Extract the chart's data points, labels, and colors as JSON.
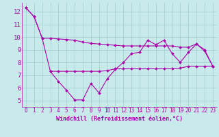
{
  "xlabel": "Windchill (Refroidissement éolien,°C)",
  "bg_color": "#c8eaea",
  "grid_color": "#a0cccc",
  "line_color": "#aa00aa",
  "xlim": [
    -0.5,
    23.5
  ],
  "ylim": [
    4.5,
    12.7
  ],
  "yticks": [
    5,
    6,
    7,
    8,
    9,
    10,
    11,
    12
  ],
  "xticks": [
    0,
    1,
    2,
    3,
    4,
    5,
    6,
    7,
    8,
    9,
    10,
    11,
    12,
    13,
    14,
    15,
    16,
    17,
    18,
    19,
    20,
    21,
    22,
    23
  ],
  "series1_x": [
    0,
    1,
    2,
    3,
    4,
    5,
    6,
    7,
    8,
    9,
    10,
    11,
    12,
    13,
    14,
    15,
    16,
    17,
    18,
    19,
    20,
    21,
    22,
    23
  ],
  "series1_y": [
    12.3,
    11.6,
    9.9,
    7.3,
    6.5,
    5.8,
    5.05,
    5.05,
    6.35,
    5.6,
    6.7,
    7.45,
    8.0,
    8.7,
    8.8,
    9.75,
    9.4,
    9.75,
    8.7,
    8.0,
    8.8,
    9.45,
    8.9,
    7.7
  ],
  "series2_x": [
    0,
    1,
    2,
    3,
    4,
    5,
    6,
    7,
    8,
    9,
    10,
    11,
    12,
    13,
    14,
    15,
    16,
    17,
    18,
    19,
    20,
    21,
    22,
    23
  ],
  "series2_y": [
    12.3,
    11.6,
    9.9,
    9.9,
    9.85,
    9.8,
    9.75,
    9.6,
    9.5,
    9.45,
    9.4,
    9.35,
    9.3,
    9.3,
    9.3,
    9.3,
    9.3,
    9.3,
    9.3,
    9.2,
    9.2,
    9.45,
    9.0,
    7.7
  ],
  "series3_x": [
    3,
    4,
    5,
    6,
    7,
    8,
    9,
    10,
    11,
    12,
    13,
    14,
    15,
    16,
    17,
    18,
    19,
    20,
    21,
    22,
    23
  ],
  "series3_y": [
    7.3,
    7.3,
    7.3,
    7.3,
    7.3,
    7.3,
    7.3,
    7.35,
    7.5,
    7.5,
    7.5,
    7.5,
    7.5,
    7.5,
    7.5,
    7.5,
    7.55,
    7.7,
    7.7,
    7.7,
    7.7
  ]
}
